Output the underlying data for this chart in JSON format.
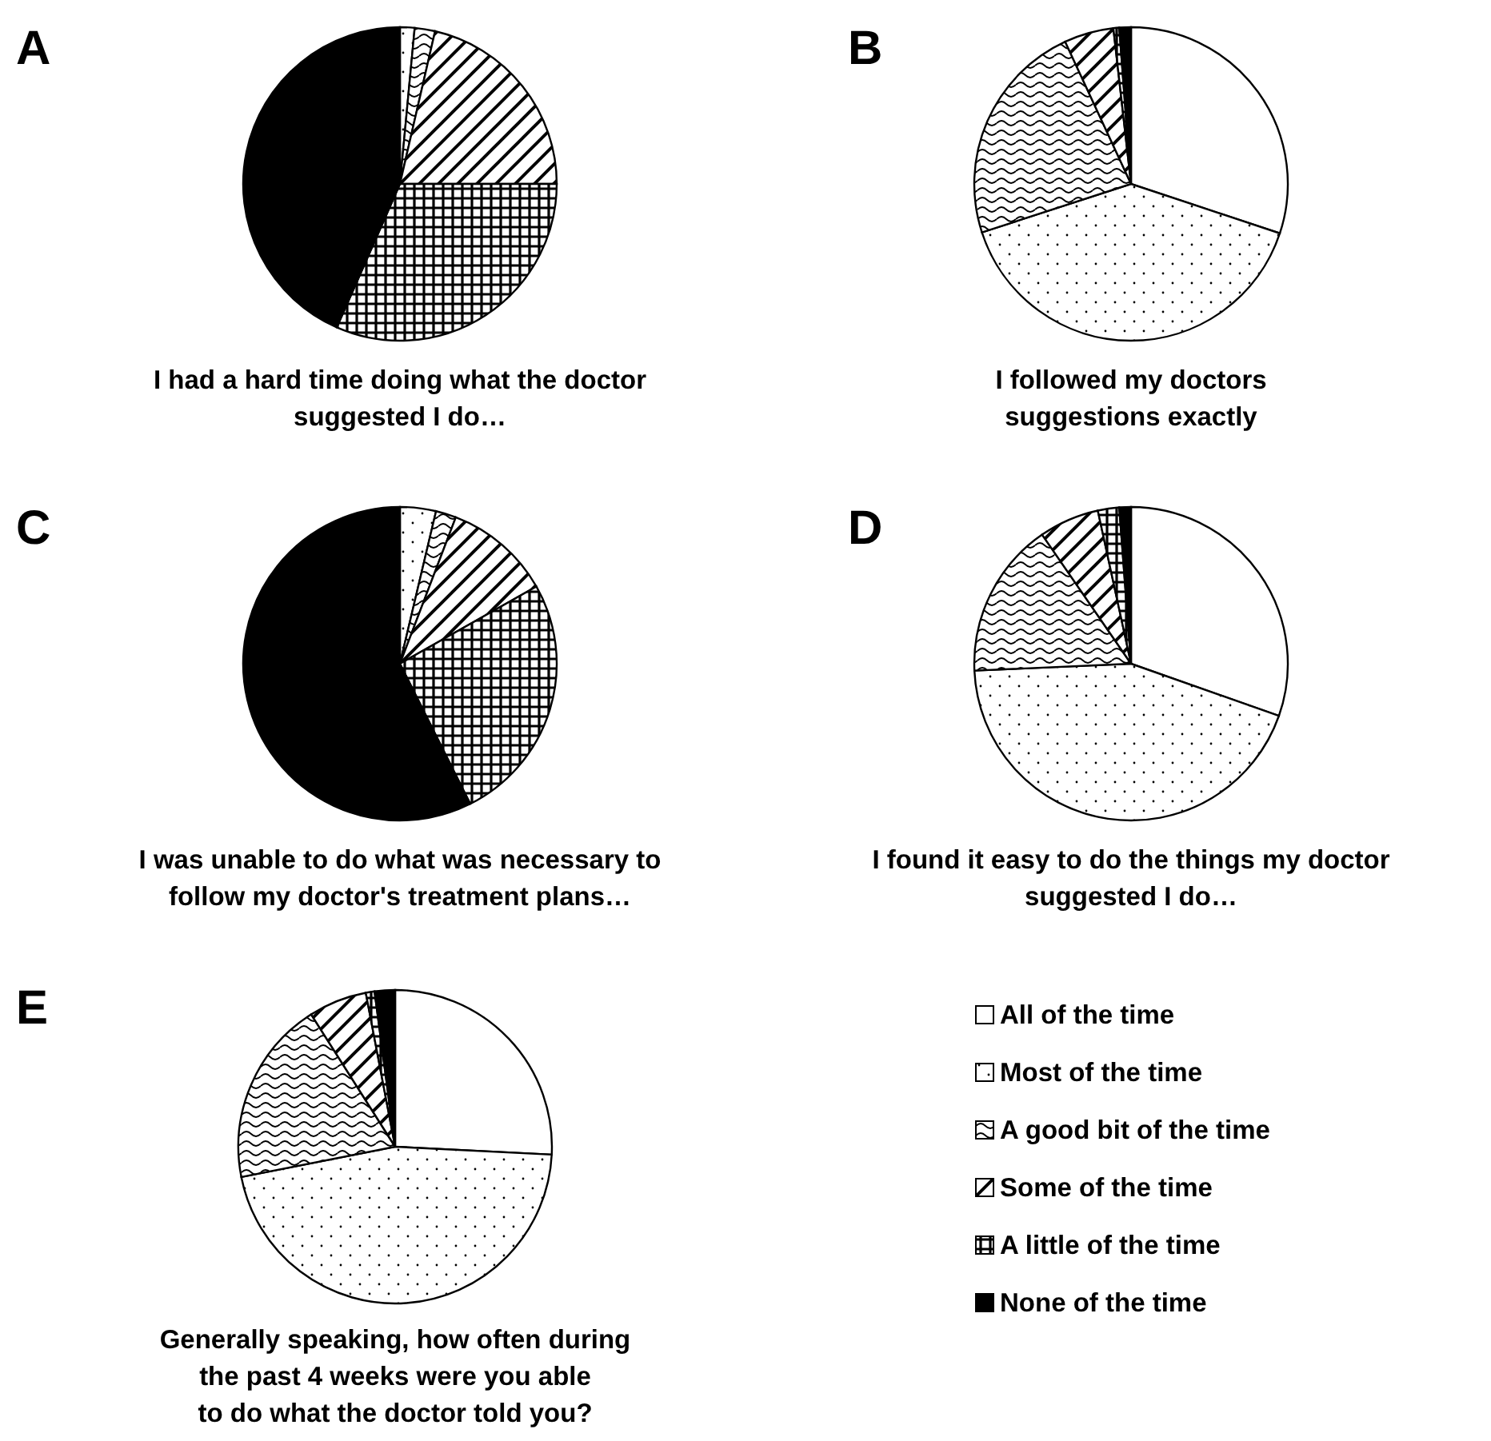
{
  "chart_data": [
    {
      "type": "pie",
      "title": "I had a hard time doing what the doctor\nsuggested I do…",
      "annotations": [
        "A"
      ],
      "values": [
        0,
        1.5,
        2.1,
        21.4,
        31.6,
        43.4
      ],
      "colors": [
        "#ffffff",
        "#000000",
        "#000000",
        "#000000",
        "#000000",
        "#000000"
      ],
      "legend": false
    },
    {
      "type": "pie",
      "title": "I followed my doctors\nsuggestions exactly",
      "annotations": [
        "B"
      ],
      "values": [
        30.1,
        39.9,
        23.1,
        5.1,
        0.6,
        1.2
      ],
      "colors": [
        "#ffffff",
        "#000000",
        "#000000",
        "#000000",
        "#000000",
        "#000000"
      ],
      "legend": false
    },
    {
      "type": "pie",
      "title": "I was unable to do what was necessary to\nfollow my doctor's treatment plans…",
      "annotations": [
        "C"
      ],
      "values": [
        0,
        3.7,
        2.1,
        11,
        25.8,
        57.4
      ],
      "colors": [
        "#ffffff",
        "#000000",
        "#000000",
        "#000000",
        "#000000",
        "#000000"
      ],
      "legend": false
    },
    {
      "type": "pie",
      "title": "I found it easy to do the things my doctor\nsuggested I do…",
      "annotations": [
        "D"
      ],
      "values": [
        30.4,
        43.9,
        16.1,
        6.2,
        2.2,
        1.2
      ],
      "colors": [
        "#ffffff",
        "#000000",
        "#000000",
        "#000000",
        "#000000",
        "#000000"
      ],
      "legend": false
    },
    {
      "type": "pie",
      "title": "Generally speaking, how often during\nthe past 4 weeks were you able\nto do what the doctor told you?",
      "annotations": [
        "E"
      ],
      "categories": [
        "All of the time",
        "Most of the time",
        "A good bit of the time",
        "Some of the time",
        "A little of the time",
        "None of the time"
      ],
      "values": [
        25.8,
        46.1,
        19.1,
        6,
        0.9,
        2.1
      ],
      "colors": [
        "#ffffff",
        "#000000",
        "#000000",
        "#000000",
        "#000000",
        "#000000"
      ],
      "legend": "right"
    }
  ]
}
